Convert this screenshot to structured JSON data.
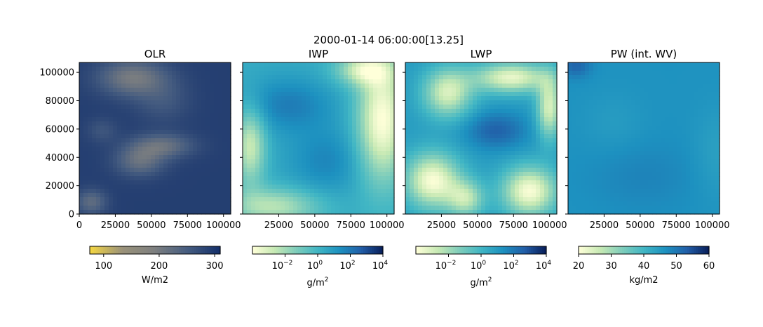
{
  "suptitle": "2000-01-14 06:00:00[13.25]",
  "chart_data": [
    {
      "type": "heatmap",
      "title": "OLR",
      "x_ticks": [
        0,
        25000,
        50000,
        75000,
        100000
      ],
      "y_ticks": [
        0,
        20000,
        40000,
        60000,
        80000,
        100000
      ],
      "xlim": [
        0,
        105000
      ],
      "ylim": [
        0,
        107000
      ],
      "show_x_ticklabels": true,
      "show_y_ticklabels": true,
      "field": "olr",
      "colormap": [
        "#f5d742",
        "#9a927a",
        "#7d7f80",
        "#455c80",
        "#14306a"
      ],
      "colorbar": {
        "scale": "linear",
        "range": [
          75,
          310
        ],
        "ticks": [
          100,
          200,
          300
        ],
        "tick_labels": [
          "100",
          "200",
          "300"
        ],
        "label": "W/m2"
      }
    },
    {
      "type": "heatmap",
      "title": "IWP",
      "x_ticks": [
        25000,
        50000,
        75000,
        100000
      ],
      "y_ticks": [
        0,
        20000,
        40000,
        60000,
        80000,
        100000
      ],
      "xlim": [
        0,
        105000
      ],
      "ylim": [
        0,
        107000
      ],
      "show_x_ticklabels": true,
      "show_y_ticklabels": false,
      "field": "iwp",
      "colormap": [
        "#ffffd9",
        "#c7e9b4",
        "#7fcdbb",
        "#41b6c4",
        "#1d91c0",
        "#225ea8",
        "#081d58"
      ],
      "colorbar": {
        "scale": "log",
        "range": [
          -4,
          4
        ],
        "ticks": [
          -2,
          0,
          2,
          4
        ],
        "tick_labels": [
          "10",
          "10",
          "10",
          "10"
        ],
        "tick_exponents": [
          "−2",
          "0",
          "2",
          "4"
        ],
        "label": "g/m",
        "label_sup": "2"
      }
    },
    {
      "type": "heatmap",
      "title": "LWP",
      "x_ticks": [
        25000,
        50000,
        75000,
        100000
      ],
      "y_ticks": [
        0,
        20000,
        40000,
        60000,
        80000,
        100000
      ],
      "xlim": [
        0,
        105000
      ],
      "ylim": [
        0,
        107000
      ],
      "show_x_ticklabels": true,
      "show_y_ticklabels": false,
      "field": "lwp",
      "colormap": [
        "#ffffd9",
        "#c7e9b4",
        "#7fcdbb",
        "#41b6c4",
        "#1d91c0",
        "#225ea8",
        "#081d58"
      ],
      "colorbar": {
        "scale": "log",
        "range": [
          -4,
          4
        ],
        "ticks": [
          -2,
          0,
          2,
          4
        ],
        "tick_labels": [
          "10",
          "10",
          "10",
          "10"
        ],
        "tick_exponents": [
          "−2",
          "0",
          "2",
          "4"
        ],
        "label": "g/m",
        "label_sup": "2"
      }
    },
    {
      "type": "heatmap",
      "title": "PW (int. WV)",
      "x_ticks": [
        25000,
        50000,
        75000,
        100000
      ],
      "y_ticks": [
        0,
        20000,
        40000,
        60000,
        80000,
        100000
      ],
      "xlim": [
        0,
        105000
      ],
      "ylim": [
        0,
        107000
      ],
      "show_x_ticklabels": true,
      "show_y_ticklabels": false,
      "field": "pw",
      "colormap": [
        "#ffffd9",
        "#c7e9b4",
        "#7fcdbb",
        "#41b6c4",
        "#1d91c0",
        "#225ea8",
        "#081d58"
      ],
      "colorbar": {
        "scale": "linear",
        "range": [
          20,
          60
        ],
        "ticks": [
          20,
          30,
          40,
          50,
          60
        ],
        "tick_labels": [
          "20",
          "30",
          "40",
          "50",
          "60"
        ],
        "label": "kg/m2"
      }
    }
  ]
}
